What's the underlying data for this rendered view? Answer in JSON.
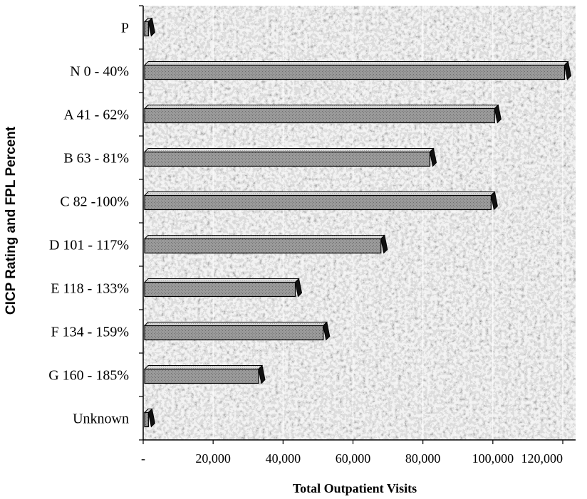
{
  "chart_data": {
    "type": "bar",
    "orientation": "horizontal",
    "title": "",
    "xlabel": "Total Outpatient Visits",
    "ylabel": "CICP Rating and FPL Percent",
    "categories": [
      "P",
      "N 0 - 40%",
      "A 41 - 62%",
      "B 63 - 81%",
      "C 82 -100%",
      "D 101 - 117%",
      "E 118 - 133%",
      "F 134 - 159%",
      "G 160 - 185%",
      "Unknown"
    ],
    "values": [
      1500,
      120500,
      100500,
      82000,
      99500,
      68000,
      43500,
      51500,
      33000,
      1500
    ],
    "xlim": [
      0,
      120000
    ],
    "xticks": [
      0,
      20000,
      40000,
      60000,
      80000,
      100000,
      120000
    ],
    "xtick_labels": [
      "-",
      "20,000",
      "40,000",
      "60,000",
      "80,000",
      "100,000",
      "120,000"
    ],
    "grid": true,
    "legend": "none",
    "colors": {
      "bar_face": "#8e8e8e",
      "bar_top": "#cfcfcf",
      "bar_end": "#111111",
      "plot_background": "#c9c9c9"
    }
  }
}
